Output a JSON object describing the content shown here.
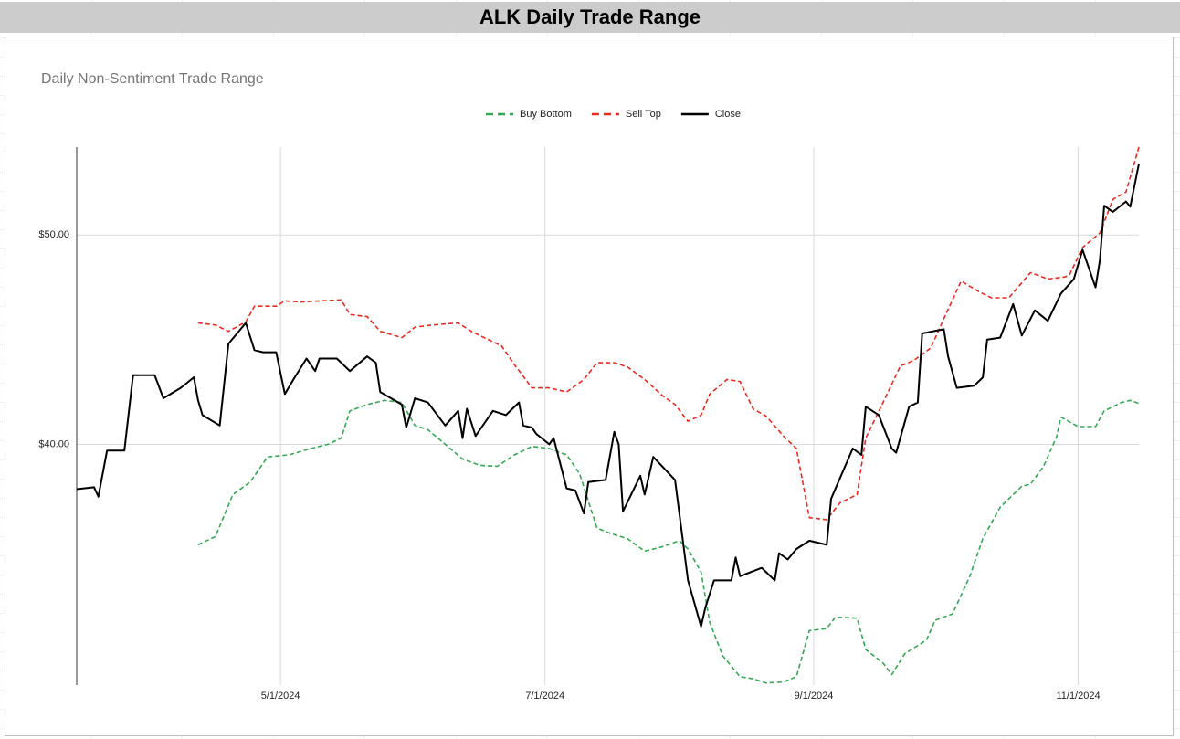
{
  "header": {
    "title": "ALK Daily Trade Range"
  },
  "chart_data": {
    "type": "line",
    "title": "Daily Non-Sentiment Trade Range",
    "xlim": [
      "2024-03-15",
      "2024-11-15"
    ],
    "xticks": [
      {
        "value": "2024-05-01",
        "label": "5/1/2024"
      },
      {
        "value": "2024-07-01",
        "label": "7/1/2024"
      },
      {
        "value": "2024-09-01",
        "label": "9/1/2024"
      },
      {
        "value": "2024-11-01",
        "label": "11/1/2024"
      }
    ],
    "ylim": [
      28.5,
      54.2
    ],
    "yticks": [
      {
        "value": 40,
        "label": "$40.00"
      },
      {
        "value": 50,
        "label": "$50.00"
      }
    ],
    "grid": true,
    "legend": "top",
    "series": [
      {
        "name": "Buy Bottom",
        "color": "#34a853",
        "dashed": true,
        "x": [
          "2024-04-12",
          "2024-04-16",
          "2024-04-20",
          "2024-04-24",
          "2024-04-28",
          "2024-05-03",
          "2024-05-08",
          "2024-05-12",
          "2024-05-15",
          "2024-05-17",
          "2024-05-21",
          "2024-05-25",
          "2024-05-29",
          "2024-06-01",
          "2024-06-04",
          "2024-06-08",
          "2024-06-12",
          "2024-06-16",
          "2024-06-20",
          "2024-06-24",
          "2024-06-28",
          "2024-07-02",
          "2024-07-06",
          "2024-07-09",
          "2024-07-13",
          "2024-07-16",
          "2024-07-20",
          "2024-07-24",
          "2024-07-28",
          "2024-08-01",
          "2024-08-03",
          "2024-08-06",
          "2024-08-08",
          "2024-08-11",
          "2024-08-15",
          "2024-08-18",
          "2024-08-21",
          "2024-08-25",
          "2024-08-28",
          "2024-08-31",
          "2024-09-04",
          "2024-09-06",
          "2024-09-11",
          "2024-09-13",
          "2024-09-17",
          "2024-09-19",
          "2024-09-22",
          "2024-09-27",
          "2024-09-29",
          "2024-10-03",
          "2024-10-07",
          "2024-10-10",
          "2024-10-14",
          "2024-10-19",
          "2024-10-21",
          "2024-10-24",
          "2024-10-27",
          "2024-10-28",
          "2024-11-01",
          "2024-11-05",
          "2024-11-07",
          "2024-11-11",
          "2024-11-13",
          "2024-11-15"
        ],
        "values": [
          35.2,
          35.6,
          37.6,
          38.2,
          39.4,
          39.5,
          39.8,
          40.0,
          40.3,
          41.6,
          41.9,
          42.1,
          42.0,
          40.9,
          40.7,
          40.0,
          39.3,
          39.0,
          38.95,
          39.5,
          39.9,
          39.8,
          39.5,
          38.6,
          36.0,
          35.75,
          35.5,
          34.9,
          35.1,
          35.4,
          35.0,
          33.9,
          31.5,
          29.9,
          28.9,
          28.8,
          28.6,
          28.65,
          28.9,
          31.1,
          31.2,
          31.75,
          31.7,
          30.2,
          29.55,
          29.0,
          30.0,
          30.65,
          31.6,
          31.9,
          33.7,
          35.5,
          37.0,
          38.0,
          38.1,
          38.95,
          40.35,
          41.3,
          40.85,
          40.85,
          41.6,
          42.0,
          42.1,
          41.95
        ]
      },
      {
        "name": "Sell Top",
        "color": "#ea2a1f",
        "dashed": true,
        "x": [
          "2024-04-12",
          "2024-04-16",
          "2024-04-19",
          "2024-04-23",
          "2024-04-25",
          "2024-04-30",
          "2024-05-02",
          "2024-05-06",
          "2024-05-10",
          "2024-05-15",
          "2024-05-17",
          "2024-05-21",
          "2024-05-24",
          "2024-05-29",
          "2024-06-01",
          "2024-06-05",
          "2024-06-11",
          "2024-06-14",
          "2024-06-17",
          "2024-06-21",
          "2024-06-24",
          "2024-06-28",
          "2024-07-02",
          "2024-07-06",
          "2024-07-10",
          "2024-07-13",
          "2024-07-17",
          "2024-07-20",
          "2024-07-24",
          "2024-07-28",
          "2024-07-31",
          "2024-08-03",
          "2024-08-06",
          "2024-08-08",
          "2024-08-12",
          "2024-08-15",
          "2024-08-18",
          "2024-08-21",
          "2024-08-25",
          "2024-08-28",
          "2024-08-31",
          "2024-09-04",
          "2024-09-07",
          "2024-09-11",
          "2024-09-13",
          "2024-09-17",
          "2024-09-21",
          "2024-09-24",
          "2024-09-28",
          "2024-10-01",
          "2024-10-05",
          "2024-10-09",
          "2024-10-12",
          "2024-10-16",
          "2024-10-21",
          "2024-10-25",
          "2024-10-29",
          "2024-10-30",
          "2024-11-02",
          "2024-11-06",
          "2024-11-09",
          "2024-11-12",
          "2024-11-15"
        ],
        "values": [
          45.8,
          45.7,
          45.4,
          45.85,
          46.6,
          46.6,
          46.85,
          46.8,
          46.85,
          46.9,
          46.2,
          46.1,
          45.4,
          45.1,
          45.6,
          45.7,
          45.8,
          45.4,
          45.1,
          44.7,
          43.8,
          42.7,
          42.7,
          42.5,
          43.1,
          43.9,
          43.9,
          43.7,
          43.1,
          42.35,
          41.9,
          41.1,
          41.4,
          42.4,
          43.1,
          43.0,
          41.7,
          41.35,
          40.4,
          39.8,
          36.5,
          36.4,
          37.2,
          37.6,
          40.3,
          42.0,
          43.75,
          44.0,
          44.6,
          46.0,
          47.8,
          47.3,
          47.0,
          47.0,
          48.2,
          47.9,
          48.0,
          48.1,
          49.4,
          50.1,
          51.7,
          52.05,
          54.2
        ]
      },
      {
        "name": "Close",
        "color": "#000000",
        "dashed": false,
        "x": [
          "2024-03-15",
          "2024-03-19",
          "2024-03-20",
          "2024-03-22",
          "2024-03-26",
          "2024-03-28",
          "2024-04-02",
          "2024-04-04",
          "2024-04-08",
          "2024-04-11",
          "2024-04-12",
          "2024-04-13",
          "2024-04-17",
          "2024-04-19",
          "2024-04-23",
          "2024-04-25",
          "2024-04-27",
          "2024-04-30",
          "2024-05-02",
          "2024-05-04",
          "2024-05-07",
          "2024-05-09",
          "2024-05-10",
          "2024-05-14",
          "2024-05-17",
          "2024-05-21",
          "2024-05-23",
          "2024-05-24",
          "2024-05-29",
          "2024-05-30",
          "2024-06-01",
          "2024-06-04",
          "2024-06-08",
          "2024-06-11",
          "2024-06-12",
          "2024-06-13",
          "2024-06-15",
          "2024-06-19",
          "2024-06-22",
          "2024-06-25",
          "2024-06-26",
          "2024-06-28",
          "2024-06-29",
          "2024-07-02",
          "2024-07-03",
          "2024-07-06",
          "2024-07-08",
          "2024-07-10",
          "2024-07-11",
          "2024-07-15",
          "2024-07-17",
          "2024-07-18",
          "2024-07-19",
          "2024-07-23",
          "2024-07-24",
          "2024-07-26",
          "2024-07-31",
          "2024-08-03",
          "2024-08-06",
          "2024-08-07",
          "2024-08-09",
          "2024-08-13",
          "2024-08-14",
          "2024-08-15",
          "2024-08-20",
          "2024-08-23",
          "2024-08-24",
          "2024-08-26",
          "2024-08-28",
          "2024-08-31",
          "2024-09-04",
          "2024-09-05",
          "2024-09-10",
          "2024-09-12",
          "2024-09-13",
          "2024-09-16",
          "2024-09-19",
          "2024-09-20",
          "2024-09-23",
          "2024-09-25",
          "2024-09-26",
          "2024-10-01",
          "2024-10-02",
          "2024-10-04",
          "2024-10-08",
          "2024-10-10",
          "2024-10-11",
          "2024-10-14",
          "2024-10-17",
          "2024-10-19",
          "2024-10-22",
          "2024-10-25",
          "2024-10-28",
          "2024-10-31",
          "2024-11-02",
          "2024-11-05",
          "2024-11-06",
          "2024-11-07",
          "2024-11-09",
          "2024-11-12",
          "2024-11-13",
          "2024-11-15"
        ],
        "values": [
          37.86,
          37.95,
          37.5,
          39.7,
          39.7,
          43.3,
          43.3,
          42.2,
          42.7,
          43.2,
          42.1,
          41.4,
          40.9,
          44.8,
          45.8,
          44.5,
          44.4,
          44.4,
          42.4,
          43.1,
          44.1,
          43.5,
          44.1,
          44.1,
          43.5,
          44.2,
          43.9,
          42.5,
          41.9,
          40.8,
          42.2,
          42.0,
          40.9,
          41.6,
          40.3,
          41.7,
          40.4,
          41.6,
          41.4,
          42.0,
          40.9,
          40.8,
          40.5,
          40.0,
          40.3,
          37.9,
          37.8,
          36.7,
          38.2,
          38.3,
          40.6,
          40.0,
          36.8,
          38.5,
          37.6,
          39.4,
          38.3,
          33.5,
          31.3,
          32.2,
          33.5,
          33.5,
          34.6,
          33.7,
          34.1,
          33.5,
          34.8,
          34.5,
          35.0,
          35.4,
          35.2,
          37.4,
          39.8,
          39.5,
          41.8,
          41.4,
          39.8,
          39.6,
          41.8,
          42.0,
          45.3,
          45.5,
          44.2,
          42.7,
          42.8,
          43.2,
          45.0,
          45.1,
          46.7,
          45.2,
          46.4,
          45.9,
          47.2,
          47.9,
          49.3,
          47.5,
          48.8,
          51.4,
          51.1,
          51.6,
          51.35,
          53.4
        ]
      }
    ]
  }
}
